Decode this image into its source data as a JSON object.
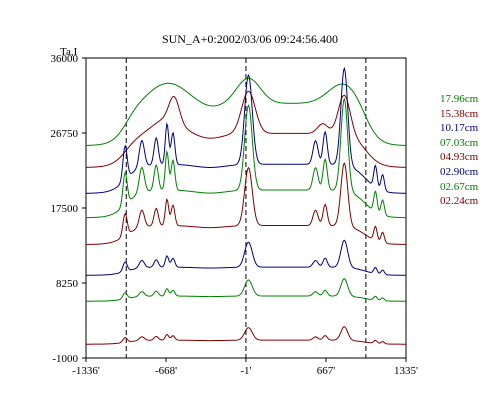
{
  "chart_data": {
    "type": "line",
    "title": "SUN_A+0:2002/03/06 09:24:56.400",
    "ylabel": "Ta,I",
    "xlabel": "",
    "xlim": [
      -1336,
      1335
    ],
    "ylim": [
      -1000,
      36000
    ],
    "x_ticks": [
      "-1336'",
      "-668'",
      "-1'",
      "667'",
      "1335'"
    ],
    "x_tick_values": [
      -1336,
      -668,
      -1,
      667,
      1335
    ],
    "y_ticks": [
      "36000",
      "26750",
      "17500",
      "8250",
      "-1000"
    ],
    "y_tick_values": [
      36000,
      26750,
      17500,
      8250,
      -1000
    ],
    "vlines": [
      -1000,
      -1,
      1000
    ],
    "series": [
      {
        "name": "17.96cm",
        "color": "#008000",
        "offset": 25200,
        "profile": "smooth",
        "scale": 1.0
      },
      {
        "name": "15.38cm",
        "color": "#800000",
        "offset": 22500,
        "profile": "medium",
        "scale": 1.0
      },
      {
        "name": "10.17cm",
        "color": "#000080",
        "offset": 19300,
        "profile": "peaky",
        "scale": 1.0
      },
      {
        "name": "07.03cm",
        "color": "#008000",
        "offset": 16300,
        "profile": "peaky",
        "scale": 0.95
      },
      {
        "name": "04.93cm",
        "color": "#800000",
        "offset": 13000,
        "profile": "peaky",
        "scale": 0.65
      },
      {
        "name": "02.90cm",
        "color": "#000080",
        "offset": 9200,
        "profile": "peaky",
        "scale": 0.28
      },
      {
        "name": "02.67cm",
        "color": "#008000",
        "offset": 6000,
        "profile": "peaky",
        "scale": 0.18
      },
      {
        "name": "02.24cm",
        "color": "#800000",
        "offset": 700,
        "profile": "peaky",
        "scale": 0.14
      }
    ]
  }
}
